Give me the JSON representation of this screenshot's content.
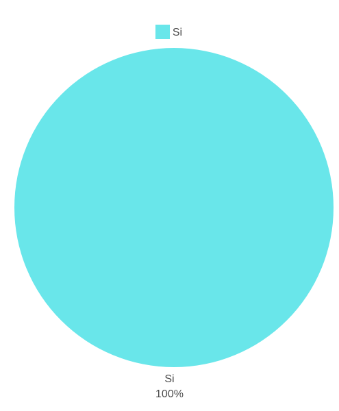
{
  "chart_data": {
    "type": "pie",
    "categories": [
      "Si"
    ],
    "values": [
      100
    ],
    "slice_labels": [
      {
        "name": "Si",
        "percent": "100%"
      }
    ],
    "colors": [
      "#69e6ea"
    ],
    "legend": {
      "position": "top",
      "entries": [
        "Si"
      ]
    }
  }
}
